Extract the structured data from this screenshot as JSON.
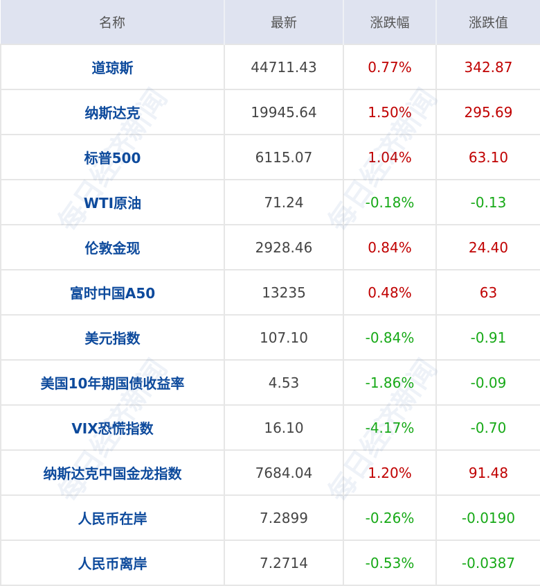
{
  "watermark": "每日经济新闻",
  "colors": {
    "header_bg": "#dfe3f0",
    "name": "#0d4a9c",
    "up": "#c00000",
    "down": "#17a917"
  },
  "headers": [
    "名称",
    "最新",
    "涨跌幅",
    "涨跌值"
  ],
  "rows": [
    {
      "name": "道琼斯",
      "latest": "44711.43",
      "pct": "0.77%",
      "chg": "342.87",
      "dir": "up"
    },
    {
      "name": "纳斯达克",
      "latest": "19945.64",
      "pct": "1.50%",
      "chg": "295.69",
      "dir": "up"
    },
    {
      "name": "标普500",
      "latest": "6115.07",
      "pct": "1.04%",
      "chg": "63.10",
      "dir": "up"
    },
    {
      "name": "WTI原油",
      "latest": "71.24",
      "pct": "-0.18%",
      "chg": "-0.13",
      "dir": "down"
    },
    {
      "name": "伦敦金现",
      "latest": "2928.46",
      "pct": "0.84%",
      "chg": "24.40",
      "dir": "up"
    },
    {
      "name": "富时中国A50",
      "latest": "13235",
      "pct": "0.48%",
      "chg": "63",
      "dir": "up"
    },
    {
      "name": "美元指数",
      "latest": "107.10",
      "pct": "-0.84%",
      "chg": "-0.91",
      "dir": "down"
    },
    {
      "name": "美国10年期国债收益率",
      "latest": "4.53",
      "pct": "-1.86%",
      "chg": "-0.09",
      "dir": "down"
    },
    {
      "name": "VIX恐慌指数",
      "latest": "16.10",
      "pct": "-4.17%",
      "chg": "-0.70",
      "dir": "down"
    },
    {
      "name": "纳斯达克中国金龙指数",
      "latest": "7684.04",
      "pct": "1.20%",
      "chg": "91.48",
      "dir": "up"
    },
    {
      "name": "人民币在岸",
      "latest": "7.2899",
      "pct": "-0.26%",
      "chg": "-0.0190",
      "dir": "down"
    },
    {
      "name": "人民币离岸",
      "latest": "7.2714",
      "pct": "-0.53%",
      "chg": "-0.0387",
      "dir": "down"
    }
  ]
}
